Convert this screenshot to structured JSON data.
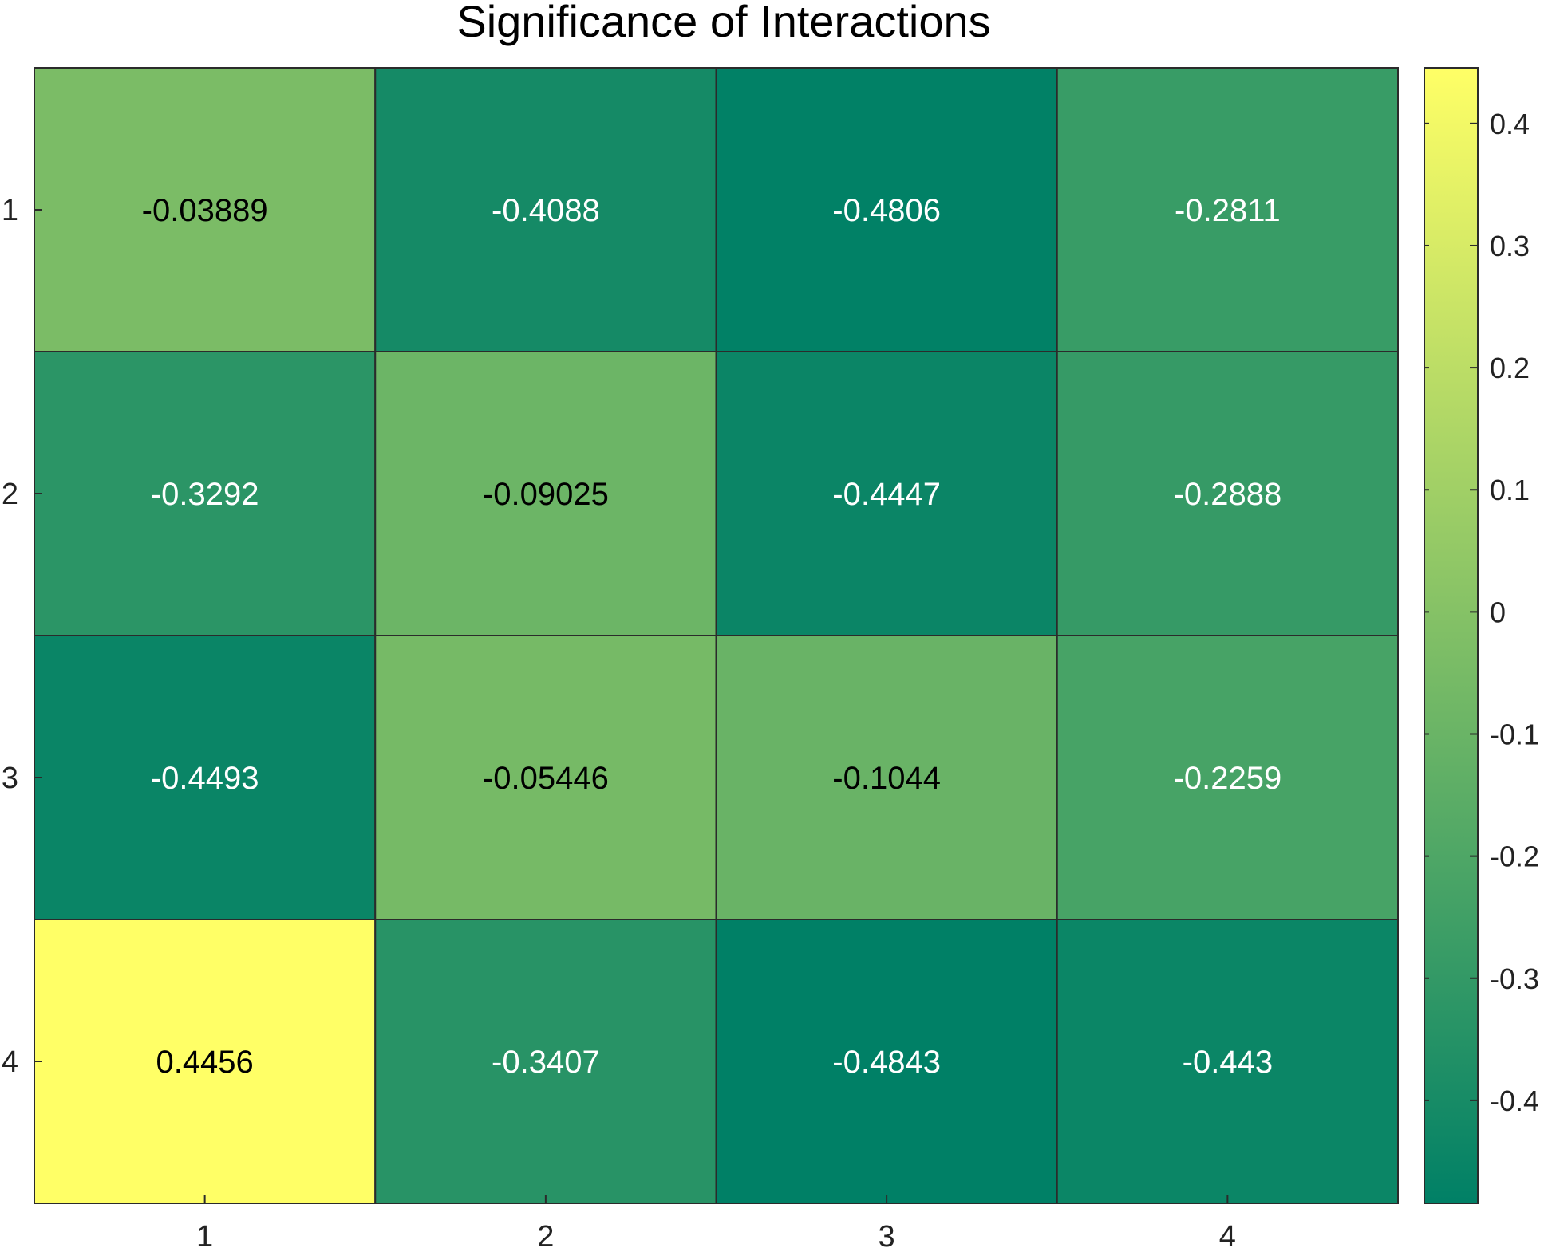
{
  "chart_data": {
    "type": "heatmap",
    "title": "Significance of Interactions",
    "xlabel": "",
    "ylabel": "",
    "x_categories": [
      "1",
      "2",
      "3",
      "4"
    ],
    "y_categories": [
      "1",
      "2",
      "3",
      "4"
    ],
    "values": [
      [
        -0.03889,
        -0.4088,
        -0.4806,
        -0.2811
      ],
      [
        -0.3292,
        -0.09025,
        -0.4447,
        -0.2888
      ],
      [
        -0.4493,
        -0.05446,
        -0.1044,
        -0.2259
      ],
      [
        0.4456,
        -0.3407,
        -0.4843,
        -0.443
      ]
    ],
    "value_labels": [
      [
        "-0.03889",
        "-0.4088",
        "-0.4806",
        "-0.2811"
      ],
      [
        "-0.3292",
        "-0.09025",
        "-0.4447",
        "-0.2888"
      ],
      [
        "-0.4493",
        "-0.05446",
        "-0.1044",
        "-0.2259"
      ],
      [
        "0.4456",
        "-0.3407",
        "-0.4843",
        "-0.443"
      ]
    ],
    "color_range": [
      -0.4843,
      0.4456
    ],
    "colormap": [
      "#008066",
      "#80bf66",
      "#ffff66"
    ],
    "colorbar": {
      "ticks": [
        0.4,
        0.3,
        0.2,
        0.1,
        0,
        -0.1,
        -0.2,
        -0.3,
        -0.4
      ],
      "tick_labels": [
        "0.4",
        "0.3",
        "0.2",
        "0.1",
        "0",
        "-0.1",
        "-0.2",
        "-0.3",
        "-0.4"
      ]
    },
    "grid": true,
    "colors": {
      "cell_border": "#2b2b2b",
      "label_dark": "#000000",
      "label_light": "#ffffff"
    }
  }
}
